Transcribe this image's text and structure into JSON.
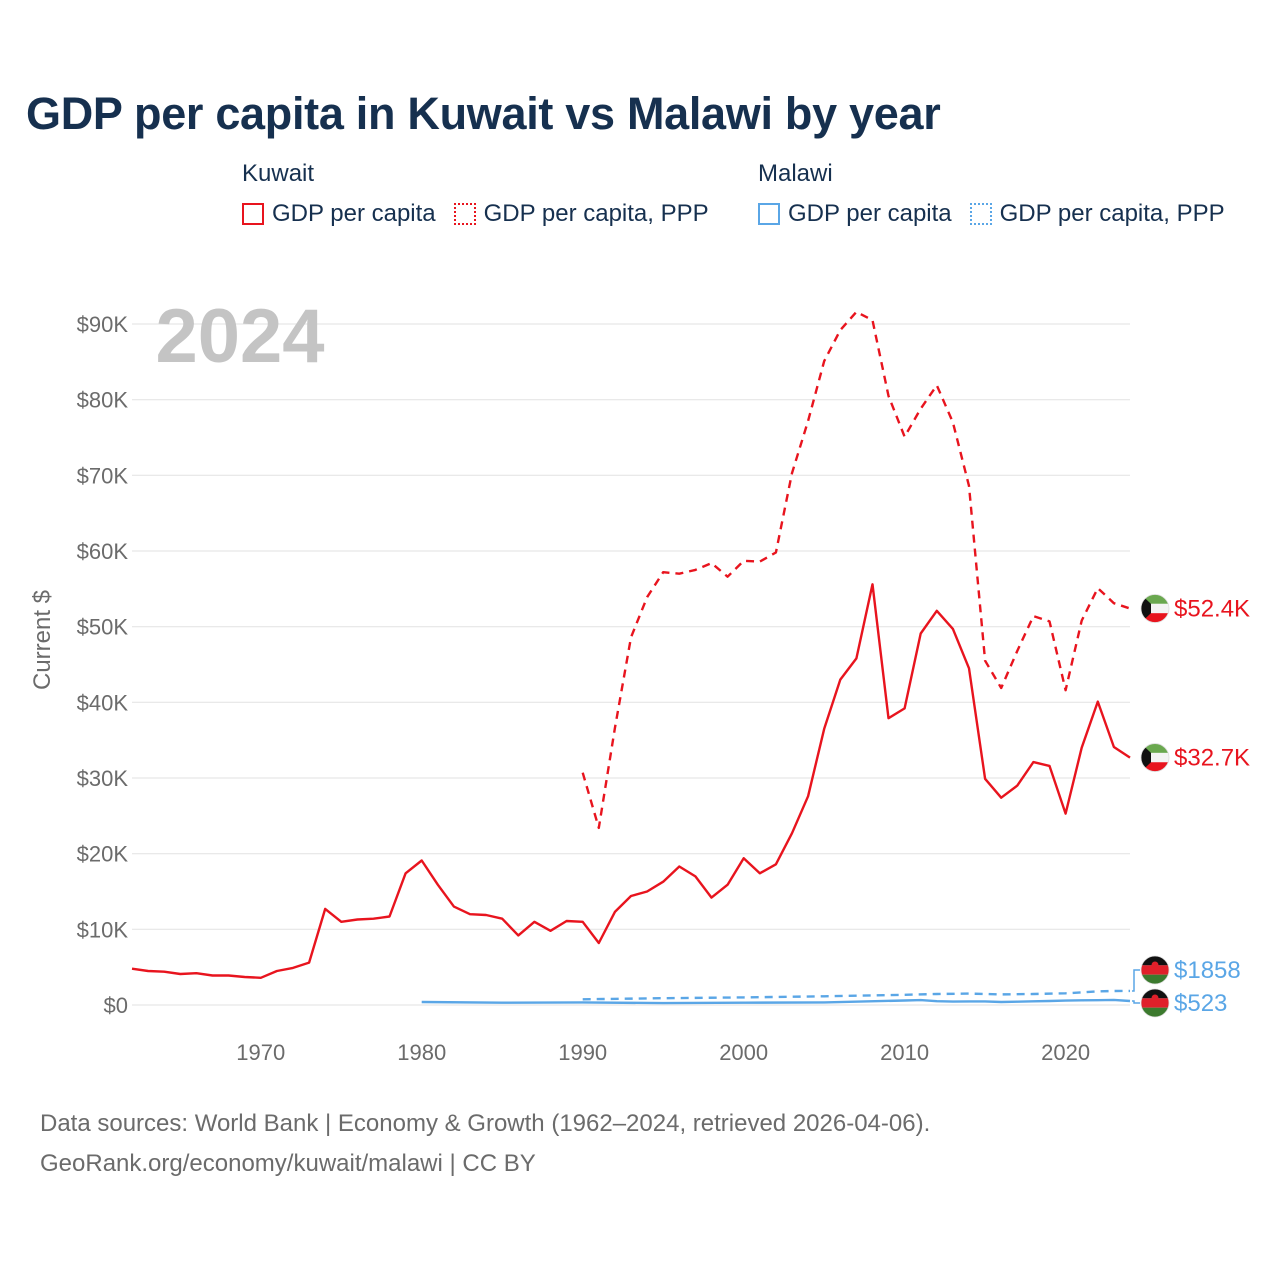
{
  "chart_data": {
    "type": "line",
    "title": "GDP per capita in Kuwait vs Malawi by year",
    "xlabel": "",
    "ylabel": "Current $",
    "xlim": [
      1962,
      2024
    ],
    "ylim": [
      0,
      90000
    ],
    "x_ticks": [
      1970,
      1980,
      1990,
      2000,
      2010,
      2020
    ],
    "y_ticks": [
      {
        "value": 0,
        "label": "$0"
      },
      {
        "value": 10000,
        "label": "$10K"
      },
      {
        "value": 20000,
        "label": "$20K"
      },
      {
        "value": 30000,
        "label": "$30K"
      },
      {
        "value": 40000,
        "label": "$40K"
      },
      {
        "value": 50000,
        "label": "$50K"
      },
      {
        "value": 60000,
        "label": "$60K"
      },
      {
        "value": 70000,
        "label": "$70K"
      },
      {
        "value": 80000,
        "label": "$80K"
      },
      {
        "value": 90000,
        "label": "$90K"
      }
    ],
    "year_label": "2024",
    "grid": true,
    "series": [
      {
        "name": "Kuwait GDP per capita",
        "country": "Kuwait",
        "style": "solid",
        "color": "#e8141e",
        "end_label": "$32.7K",
        "x": [
          1962,
          1963,
          1964,
          1965,
          1966,
          1967,
          1968,
          1969,
          1970,
          1971,
          1972,
          1973,
          1974,
          1975,
          1976,
          1977,
          1978,
          1979,
          1980,
          1981,
          1982,
          1983,
          1984,
          1985,
          1986,
          1987,
          1988,
          1989,
          1990,
          1991,
          1992,
          1993,
          1994,
          1995,
          1996,
          1997,
          1998,
          1999,
          2000,
          2001,
          2002,
          2003,
          2004,
          2005,
          2006,
          2007,
          2008,
          2009,
          2010,
          2011,
          2012,
          2013,
          2014,
          2015,
          2016,
          2017,
          2018,
          2019,
          2020,
          2021,
          2022,
          2023,
          2024
        ],
        "values": [
          4800,
          4500,
          4400,
          4100,
          4200,
          3900,
          3900,
          3700,
          3600,
          4500,
          4900,
          5600,
          12700,
          11000,
          11300,
          11400,
          11700,
          17400,
          19100,
          15900,
          13000,
          12000,
          11900,
          11400,
          9200,
          11000,
          9800,
          11100,
          11000,
          8200,
          12300,
          14400,
          15000,
          16300,
          18300,
          17000,
          14200,
          15900,
          19400,
          17400,
          18600,
          22700,
          27600,
          36500,
          43000,
          45800,
          55600,
          37900,
          39200,
          49100,
          52100,
          49700,
          44500,
          29900,
          27400,
          29000,
          32100,
          31600,
          25300,
          34000,
          40100,
          34100,
          32700
        ]
      },
      {
        "name": "Kuwait GDP per capita, PPP",
        "country": "Kuwait",
        "style": "dashed",
        "color": "#e8141e",
        "end_label": "$52.4K",
        "x": [
          1990,
          1991,
          1992,
          1993,
          1994,
          1995,
          1996,
          1997,
          1998,
          1999,
          2000,
          2001,
          2002,
          2003,
          2004,
          2005,
          2006,
          2007,
          2008,
          2009,
          2010,
          2011,
          2012,
          2013,
          2014,
          2015,
          2016,
          2017,
          2018,
          2019,
          2020,
          2021,
          2022,
          2023,
          2024
        ],
        "values": [
          30700,
          23400,
          36600,
          48600,
          53900,
          57200,
          57000,
          57500,
          58400,
          56600,
          58700,
          58600,
          59800,
          70300,
          77200,
          85100,
          89200,
          91600,
          90500,
          80500,
          75100,
          78800,
          81900,
          77000,
          68600,
          45500,
          41900,
          46800,
          51400,
          50700,
          41600,
          50800,
          55100,
          53100,
          52400
        ]
      },
      {
        "name": "Malawi GDP per capita",
        "country": "Malawi",
        "style": "solid",
        "color": "#5aa6e6",
        "end_label": "$523",
        "x": [
          1980,
          1985,
          1990,
          1995,
          2000,
          2005,
          2010,
          2011,
          2012,
          2013,
          2014,
          2015,
          2016,
          2017,
          2018,
          2019,
          2020,
          2021,
          2022,
          2023,
          2024
        ],
        "values": [
          400,
          300,
          350,
          250,
          300,
          350,
          600,
          650,
          500,
          450,
          470,
          480,
          400,
          430,
          490,
          530,
          580,
          620,
          640,
          670,
          523
        ]
      },
      {
        "name": "Malawi GDP per capita, PPP",
        "country": "Malawi",
        "style": "dashed",
        "color": "#5aa6e6",
        "end_label": "$1858",
        "x": [
          1990,
          1995,
          2000,
          2005,
          2010,
          2012,
          2014,
          2016,
          2018,
          2020,
          2022,
          2023,
          2024
        ],
        "values": [
          750,
          900,
          1000,
          1150,
          1350,
          1450,
          1500,
          1400,
          1450,
          1550,
          1800,
          1850,
          1858
        ]
      }
    ]
  },
  "legend": {
    "kuwait_title": "Kuwait",
    "malawi_title": "Malawi",
    "gdp_label": "GDP per capita",
    "ppp_label": "GDP per capita, PPP"
  },
  "footer": {
    "line1": "Data sources: World Bank | Economy & Growth (1962–2024, retrieved 2026-04-06).",
    "line2": "GeoRank.org/economy/kuwait/malawi | CC BY"
  },
  "colors": {
    "kuwait": "#e8141e",
    "malawi": "#5aa6e6",
    "title": "#16304f",
    "axis_text": "#6b6b6b",
    "grid": "#e6e6e6",
    "year_watermark": "#c4c4c4"
  }
}
